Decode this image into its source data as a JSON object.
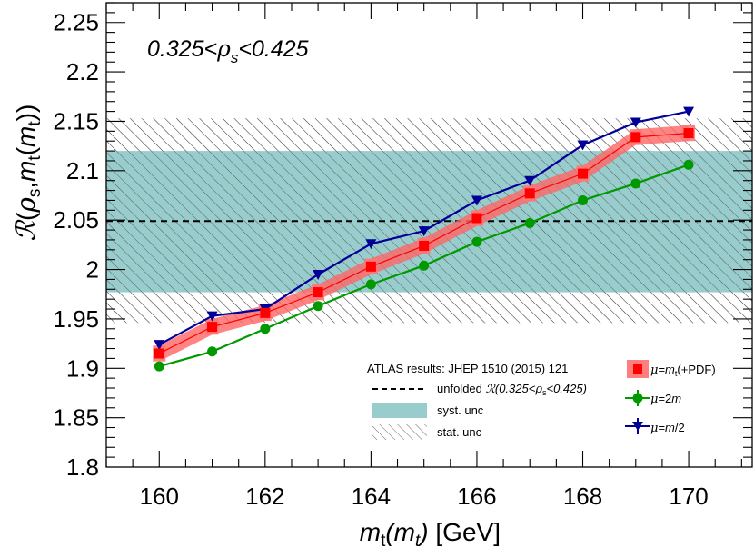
{
  "chart_data": {
    "type": "line",
    "annotation": "0.325<ρs<0.425",
    "xlabel": "mt(mt) [GeV]",
    "ylabel": "R(ρs,mt(mt))",
    "xlim": [
      159,
      171.2
    ],
    "ylim": [
      1.8,
      2.27
    ],
    "x_ticks": [
      160,
      162,
      164,
      166,
      168,
      170
    ],
    "y_ticks": [
      1.8,
      1.85,
      1.9,
      1.95,
      2.0,
      2.05,
      2.1,
      2.15,
      2.2,
      2.25
    ],
    "x_tick_labels": [
      "160",
      "162",
      "164",
      "166",
      "168",
      "170"
    ],
    "y_tick_labels": [
      "1.8",
      "1.85",
      "1.9",
      "1.95",
      "2",
      "2.05",
      "2.1",
      "2.15",
      "2.2",
      "2.25"
    ],
    "reference": {
      "central": 2.049,
      "syst_band": [
        1.977,
        2.12
      ],
      "stat_band": [
        1.946,
        2.153
      ]
    },
    "x": [
      160,
      161,
      162,
      163,
      164,
      165,
      166,
      167,
      168,
      169,
      170
    ],
    "series": [
      {
        "name": "μ=mt(+PDF)",
        "color": "#ff0000",
        "values": [
          1.915,
          1.942,
          1.956,
          1.977,
          2.003,
          2.024,
          2.052,
          2.077,
          2.097,
          2.134,
          2.138
        ],
        "band": 0.008
      },
      {
        "name": "μ=2m",
        "color": "#009900",
        "values": [
          1.902,
          1.917,
          1.94,
          1.963,
          1.985,
          2.004,
          2.028,
          2.047,
          2.07,
          2.087,
          2.106
        ]
      },
      {
        "name": "μ=m/2",
        "color": "#000099",
        "values": [
          1.924,
          1.953,
          1.96,
          1.995,
          2.026,
          2.039,
          2.07,
          2.09,
          2.126,
          2.149,
          2.16
        ]
      }
    ],
    "legend_left": {
      "header": "ATLAS results: JHEP 1510 (2015) 121",
      "unfolded": "unfolded R(0.325<ρs<0.425)",
      "syst": "syst. unc",
      "stat": "stat. unc"
    },
    "colors": {
      "syst_fill": "#99cccc",
      "ref_line": "#000000"
    }
  }
}
